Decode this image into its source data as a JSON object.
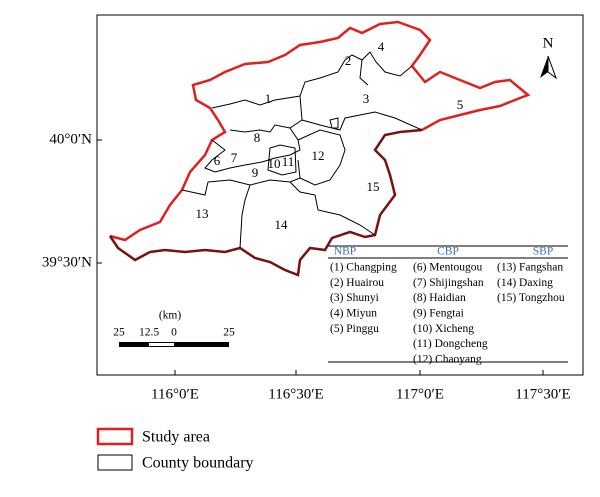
{
  "map": {
    "x_ticks": [
      "116°0′E",
      "116°30′E",
      "117°0′E",
      "117°30′E"
    ],
    "y_ticks": [
      "40°0′N",
      "39°30′N"
    ],
    "north": "N",
    "region_labels": [
      "1",
      "2",
      "3",
      "4",
      "5",
      "6",
      "7",
      "8",
      "9",
      "10",
      "11",
      "12",
      "13",
      "14",
      "15"
    ],
    "scale": {
      "unit": "(km)",
      "ticks": [
        "25",
        "12.5",
        "0",
        "25"
      ]
    },
    "table": {
      "headers": [
        "NBP",
        "CBP",
        "SBP"
      ],
      "columns": [
        [
          "(1) Changping",
          "(2) Huairou",
          "(3) Shunyi",
          "(4) Miyun",
          "(5) Pinggu"
        ],
        [
          "(6) Mentougou",
          "(7) Shijingshan",
          "(8) Haidian",
          "(9) Fengtai",
          "(10) Xicheng",
          "(11) Dongcheng",
          "(12) Chaoyang"
        ],
        [
          "(13) Fangshan",
          "(14) Daxing",
          "(15) Tongzhou"
        ]
      ]
    }
  },
  "legend": [
    {
      "label": "Study area"
    },
    {
      "label": "County boundary"
    }
  ]
}
